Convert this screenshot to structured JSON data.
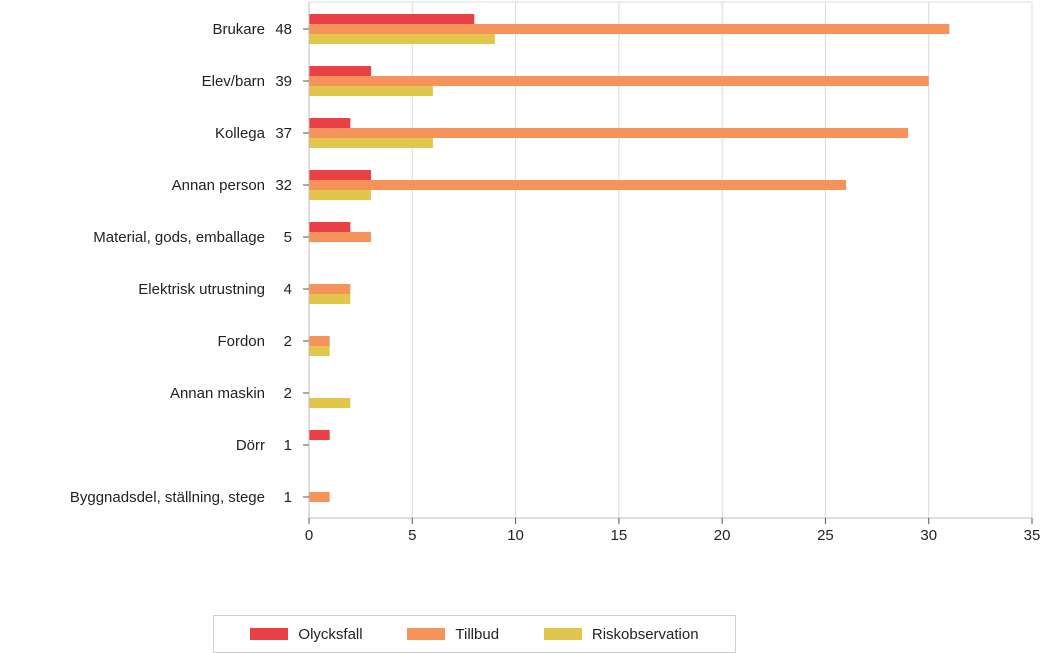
{
  "chart_data": {
    "type": "bar",
    "orientation": "horizontal",
    "categories": [
      "Brukare",
      "Elev/barn",
      "Kollega",
      "Annan person",
      "Material, gods, emballage",
      "Elektrisk utrustning",
      "Fordon",
      "Annan maskin",
      "Dörr",
      "Byggnadsdel, ställning, stege"
    ],
    "totals": [
      "48",
      "39",
      "37",
      "32",
      "5",
      "4",
      "2",
      "2",
      "1",
      "1"
    ],
    "series": [
      {
        "name": "Olycksfall",
        "color": "#e84045",
        "values": [
          8,
          3,
          2,
          3,
          2,
          0,
          0,
          0,
          1,
          0
        ]
      },
      {
        "name": "Tillbud",
        "color": "#f5935a",
        "values": [
          31,
          30,
          29,
          26,
          3,
          2,
          1,
          0,
          0,
          1
        ]
      },
      {
        "name": "Riskobservation",
        "color": "#e2c64b",
        "values": [
          9,
          6,
          6,
          3,
          0,
          2,
          1,
          2,
          0,
          0
        ]
      }
    ],
    "xticks": [
      "0",
      "5",
      "10",
      "15",
      "20",
      "25",
      "30",
      "35"
    ],
    "xlim": [
      0,
      35
    ],
    "grid": true,
    "legend_position": "bottom"
  }
}
